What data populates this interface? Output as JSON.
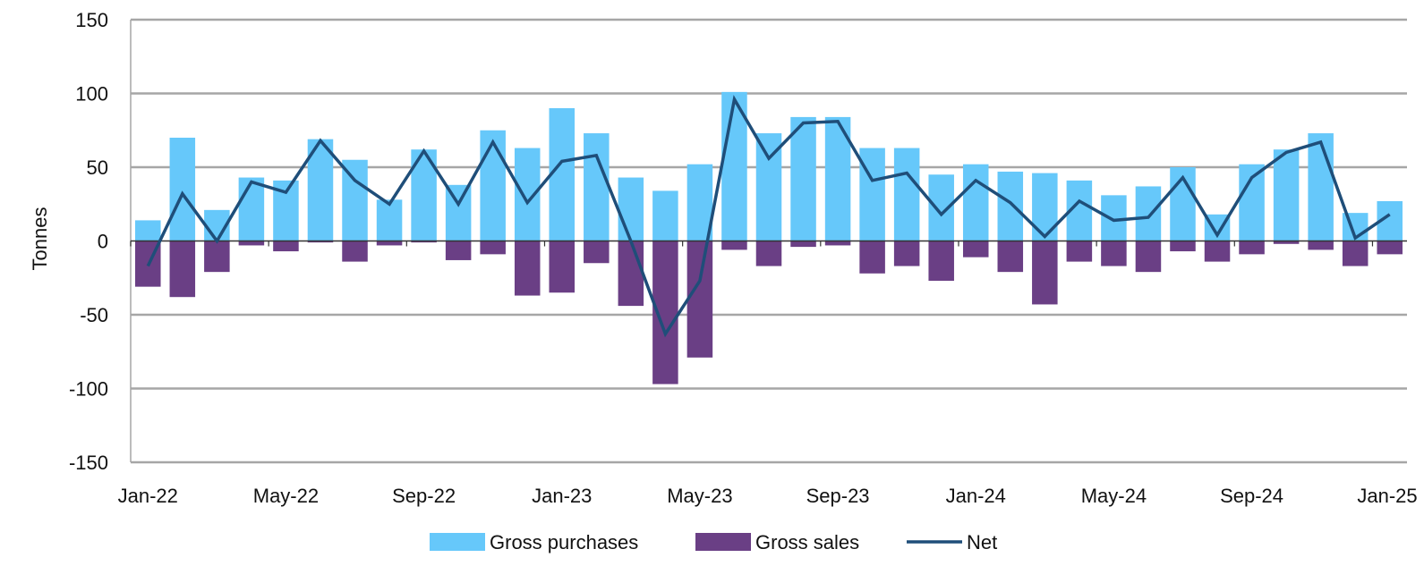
{
  "chart_data": {
    "type": "bar",
    "title": "",
    "xlabel": "",
    "ylabel": "Tonnes",
    "ylim": [
      -150,
      150
    ],
    "yticks": [
      150,
      100,
      50,
      0,
      -50,
      -100,
      -150
    ],
    "ytick_labels": [
      "150",
      "100",
      "50",
      "0",
      "-50",
      "-100",
      "-150"
    ],
    "grid": true,
    "legend_position": "bottom-center",
    "categories": [
      "Jan-22",
      "Feb-22",
      "Mar-22",
      "Apr-22",
      "May-22",
      "Jun-22",
      "Jul-22",
      "Aug-22",
      "Sep-22",
      "Oct-22",
      "Nov-22",
      "Dec-22",
      "Jan-23",
      "Feb-23",
      "Mar-23",
      "Apr-23",
      "May-23",
      "Jun-23",
      "Jul-23",
      "Aug-23",
      "Sep-23",
      "Oct-23",
      "Nov-23",
      "Dec-23",
      "Jan-24",
      "Feb-24",
      "Mar-24",
      "Apr-24",
      "May-24",
      "Jun-24",
      "Jul-24",
      "Aug-24",
      "Sep-24",
      "Oct-24",
      "Nov-24",
      "Dec-24",
      "Jan-25"
    ],
    "xtick_labels": [
      {
        "index": 0,
        "label": "Jan-22"
      },
      {
        "index": 4,
        "label": "May-22"
      },
      {
        "index": 8,
        "label": "Sep-22"
      },
      {
        "index": 12,
        "label": "Jan-23"
      },
      {
        "index": 16,
        "label": "May-23"
      },
      {
        "index": 20,
        "label": "Sep-23"
      },
      {
        "index": 24,
        "label": "Jan-24"
      },
      {
        "index": 28,
        "label": "May-24"
      },
      {
        "index": 32,
        "label": "Sep-24"
      },
      {
        "index": 36,
        "label": "Jan-25"
      }
    ],
    "series": [
      {
        "name": "Gross purchases",
        "kind": "bar",
        "color": "#66c8fa",
        "values": [
          14,
          70,
          21,
          43,
          41,
          69,
          55,
          28,
          62,
          38,
          75,
          63,
          90,
          73,
          43,
          34,
          52,
          101,
          73,
          84,
          84,
          63,
          63,
          45,
          52,
          47,
          46,
          41,
          31,
          37,
          50,
          18,
          52,
          62,
          73,
          19,
          27
        ]
      },
      {
        "name": "Gross sales",
        "kind": "bar",
        "color": "#6a3f85",
        "values": [
          -31,
          -38,
          -21,
          -3,
          -7,
          -1,
          -14,
          -3,
          -1,
          -13,
          -9,
          -37,
          -35,
          -15,
          -44,
          -97,
          -79,
          -6,
          -17,
          -4,
          -3,
          -22,
          -17,
          -27,
          -11,
          -21,
          -43,
          -14,
          -17,
          -21,
          -7,
          -14,
          -9,
          -2,
          -6,
          -17,
          -9
        ]
      },
      {
        "name": "Net",
        "kind": "line",
        "color": "#1f4e79",
        "values": [
          -17,
          32,
          0,
          40,
          33,
          68,
          41,
          25,
          61,
          25,
          67,
          26,
          54,
          58,
          0,
          -63,
          -27,
          96,
          56,
          80,
          81,
          41,
          46,
          18,
          41,
          26,
          3,
          27,
          14,
          16,
          43,
          4,
          43,
          60,
          67,
          2,
          18
        ]
      }
    ]
  }
}
